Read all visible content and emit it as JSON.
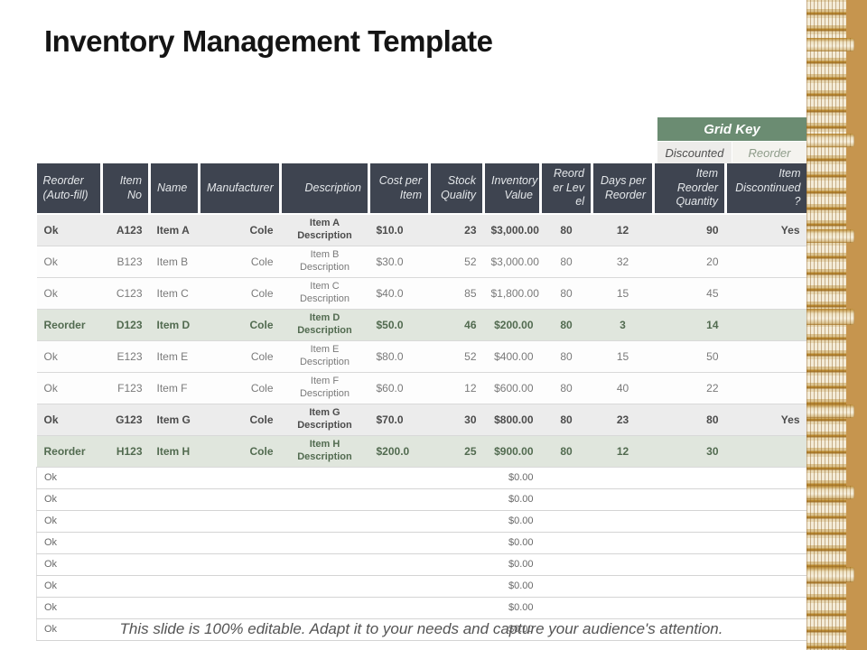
{
  "colors": {
    "headerBg": "#3e4450",
    "headerText": "#e4e7ea",
    "gridKeyGreen": "#6b8c72",
    "discountedRowBg": "#ececec",
    "discountedRowText": "#4c4c4c",
    "reorderRowBg": "#e0e6dd",
    "reorderRowText": "#526b50",
    "plainRowText": "#7a7a7a",
    "emptyRowText": "#696969",
    "rowBorder": "#d9d9d9",
    "footerText": "#545454",
    "coinBase": "#c6954e",
    "coinCream": "#f0e7d2",
    "coinBrown": "#a5772f",
    "gkDiscBg": "#edecea",
    "gkDiscText": "#4f4f4f",
    "gkReorderBg": "#f4f3ef",
    "gkReorderText": "#8e9c8a",
    "titleColor": "#141414"
  },
  "slide": {
    "title": "Inventory Management Template",
    "footer_note": "This slide is 100% editable. Adapt it to your needs and capture your audience's attention."
  },
  "grid_key": {
    "title": "Grid Key",
    "items": [
      "Discounted",
      "Reorder"
    ]
  },
  "table": {
    "column_keys": [
      "status",
      "item_no",
      "name",
      "manufacturer",
      "description",
      "cost_per_item",
      "stock_quality",
      "inventory_value",
      "reorder_level",
      "days_per_reorder",
      "item_reorder_quantity",
      "item_discontinued"
    ],
    "columns": [
      "Reorder (Auto-fill)",
      "Item No",
      "Name",
      "Manufacturer",
      "Description",
      "Cost per Item",
      "Stock Quality",
      "Inventory Value",
      "Reorder Level",
      "Days per Reorder",
      "Item Reorder Quantity",
      "Item Discontinued ?"
    ],
    "rows": [
      {
        "style": "discounted",
        "status": "Ok",
        "item_no": "A123",
        "name": "Item A",
        "manufacturer": "Cole",
        "description": "Item A Description",
        "cost_per_item": "$10.0",
        "stock_quality": "23",
        "inventory_value": "$3,000.00",
        "reorder_level": "80",
        "days_per_reorder": "12",
        "item_reorder_quantity": "90",
        "item_discontinued": "Yes"
      },
      {
        "style": "none",
        "status": "Ok",
        "item_no": "B123",
        "name": "Item B",
        "manufacturer": "Cole",
        "description": "Item B Description",
        "cost_per_item": "$30.0",
        "stock_quality": "52",
        "inventory_value": "$3,000.00",
        "reorder_level": "80",
        "days_per_reorder": "32",
        "item_reorder_quantity": "20",
        "item_discontinued": ""
      },
      {
        "style": "none",
        "status": "Ok",
        "item_no": "C123",
        "name": "Item C",
        "manufacturer": "Cole",
        "description": "Item C Description",
        "cost_per_item": "$40.0",
        "stock_quality": "85",
        "inventory_value": "$1,800.00",
        "reorder_level": "80",
        "days_per_reorder": "15",
        "item_reorder_quantity": "45",
        "item_discontinued": ""
      },
      {
        "style": "reorder",
        "status": "Reorder",
        "item_no": "D123",
        "name": "Item D",
        "manufacturer": "Cole",
        "description": "Item D Description",
        "cost_per_item": "$50.0",
        "stock_quality": "46",
        "inventory_value": "$200.00",
        "reorder_level": "80",
        "days_per_reorder": "3",
        "item_reorder_quantity": "14",
        "item_discontinued": ""
      },
      {
        "style": "none",
        "status": "Ok",
        "item_no": "E123",
        "name": "Item E",
        "manufacturer": "Cole",
        "description": "Item E Description",
        "cost_per_item": "$80.0",
        "stock_quality": "52",
        "inventory_value": "$400.00",
        "reorder_level": "80",
        "days_per_reorder": "15",
        "item_reorder_quantity": "50",
        "item_discontinued": ""
      },
      {
        "style": "none",
        "status": "Ok",
        "item_no": "F123",
        "name": "Item F",
        "manufacturer": "Cole",
        "description": "Item F Description",
        "cost_per_item": "$60.0",
        "stock_quality": "12",
        "inventory_value": "$600.00",
        "reorder_level": "80",
        "days_per_reorder": "40",
        "item_reorder_quantity": "22",
        "item_discontinued": ""
      },
      {
        "style": "discounted",
        "status": "Ok",
        "item_no": "G123",
        "name": "Item G",
        "manufacturer": "Cole",
        "description": "Item G Description",
        "cost_per_item": "$70.0",
        "stock_quality": "30",
        "inventory_value": "$800.00",
        "reorder_level": "80",
        "days_per_reorder": "23",
        "item_reorder_quantity": "80",
        "item_discontinued": "Yes"
      },
      {
        "style": "reorder",
        "status": "Reorder",
        "item_no": "H123",
        "name": "Item H",
        "manufacturer": "Cole",
        "description": "Item H Description",
        "cost_per_item": "$200.0",
        "stock_quality": "25",
        "inventory_value": "$900.00",
        "reorder_level": "80",
        "days_per_reorder": "12",
        "item_reorder_quantity": "30",
        "item_discontinued": ""
      }
    ],
    "empty_rows": [
      {
        "status": "Ok",
        "inventory_value": "$0.00"
      },
      {
        "status": "Ok",
        "inventory_value": "$0.00"
      },
      {
        "status": "Ok",
        "inventory_value": "$0.00"
      },
      {
        "status": "Ok",
        "inventory_value": "$0.00"
      },
      {
        "status": "Ok",
        "inventory_value": "$0.00"
      },
      {
        "status": "Ok",
        "inventory_value": "$0.00"
      },
      {
        "status": "Ok",
        "inventory_value": "$0.00"
      },
      {
        "status": "Ok",
        "inventory_value": "$0.00"
      }
    ]
  }
}
